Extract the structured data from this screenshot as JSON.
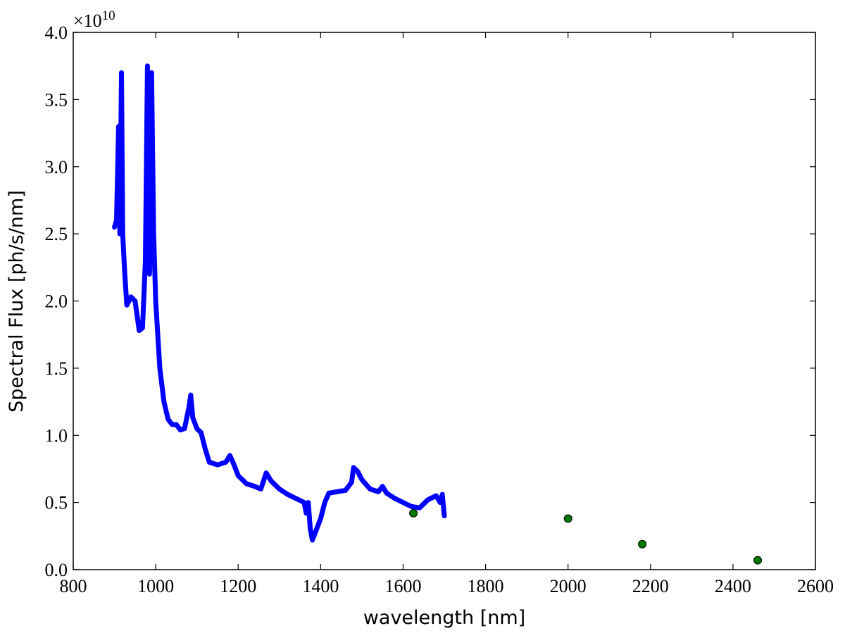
{
  "chart_data": {
    "type": "scatter",
    "x_label": "wavelength [nm]",
    "y_label": "Spectral Flux [ph/s/nm]",
    "y_multiplier": {
      "base": "×10",
      "exponent": "10"
    },
    "xlim": [
      800,
      2600
    ],
    "xticks": [
      800,
      1000,
      1200,
      1400,
      1600,
      1800,
      2000,
      2200,
      2400,
      2600
    ],
    "ylim": [
      0,
      4
    ],
    "yticks": [
      {
        "value": 0,
        "label": "0.0"
      },
      {
        "value": 0.5,
        "label": "0.5"
      },
      {
        "value": 1,
        "label": "1.0"
      },
      {
        "value": 1.5,
        "label": "1.5"
      },
      {
        "value": 2,
        "label": "2.0"
      },
      {
        "value": 2.5,
        "label": "2.5"
      },
      {
        "value": 3,
        "label": "3.0"
      },
      {
        "value": 3.5,
        "label": "3.5"
      },
      {
        "value": 4,
        "label": "4.0"
      }
    ],
    "series": [
      {
        "color": "#0000ff",
        "dense": true,
        "x": [
          900,
          905,
          910,
          913,
          917,
          920,
          925,
          930,
          940,
          950,
          960,
          968,
          975,
          980,
          985,
          990,
          995,
          1000,
          1010,
          1020,
          1030,
          1040,
          1050,
          1060,
          1070,
          1080,
          1085,
          1090,
          1100,
          1110,
          1120,
          1130,
          1150,
          1170,
          1180,
          1190,
          1200,
          1220,
          1240,
          1255,
          1268,
          1280,
          1300,
          1320,
          1340,
          1360,
          1365,
          1370,
          1375,
          1380,
          1390,
          1400,
          1410,
          1420,
          1440,
          1460,
          1475,
          1480,
          1490,
          1500,
          1520,
          1540,
          1550,
          1560,
          1580,
          1600,
          1620,
          1640,
          1660,
          1680,
          1690,
          1695,
          1700
        ],
        "values": [
          2.55,
          2.6,
          3.3,
          2.5,
          3.7,
          2.5,
          2.2,
          1.97,
          2.03,
          2.0,
          1.78,
          1.8,
          2.3,
          3.75,
          2.2,
          3.7,
          2.5,
          2.0,
          1.5,
          1.25,
          1.12,
          1.08,
          1.08,
          1.04,
          1.05,
          1.2,
          1.3,
          1.13,
          1.05,
          1.02,
          0.9,
          0.8,
          0.78,
          0.8,
          0.85,
          0.78,
          0.7,
          0.64,
          0.62,
          0.6,
          0.72,
          0.66,
          0.6,
          0.56,
          0.53,
          0.5,
          0.42,
          0.5,
          0.3,
          0.22,
          0.3,
          0.38,
          0.5,
          0.57,
          0.58,
          0.59,
          0.65,
          0.76,
          0.73,
          0.67,
          0.6,
          0.58,
          0.62,
          0.57,
          0.53,
          0.5,
          0.47,
          0.46,
          0.52,
          0.55,
          0.5,
          0.56,
          0.4
        ]
      },
      {
        "color": "#007700",
        "dense": false,
        "x": [
          1625,
          2000,
          2180,
          2460
        ],
        "values": [
          0.42,
          0.38,
          0.19,
          0.07
        ]
      }
    ]
  }
}
